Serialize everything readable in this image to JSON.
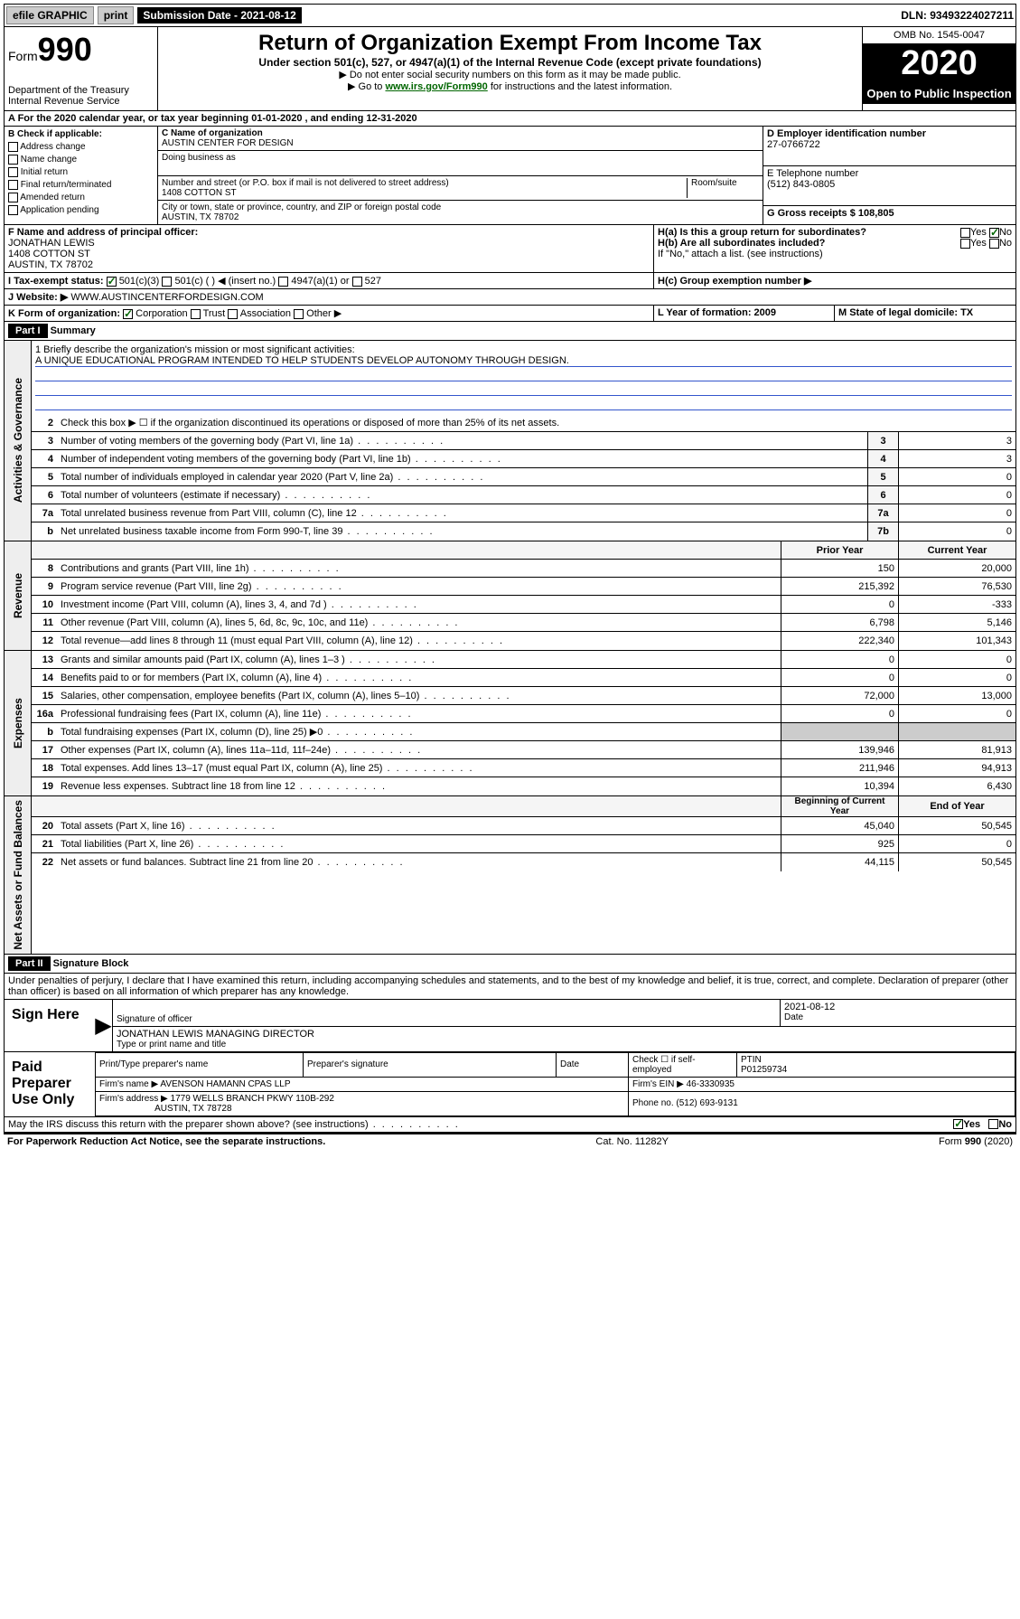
{
  "topbar": {
    "efile": "efile GRAPHIC",
    "print": "print",
    "subdate_label": "Submission Date - 2021-08-12",
    "dln": "DLN: 93493224027211"
  },
  "header": {
    "form_label": "Form",
    "form_num": "990",
    "dept": "Department of the Treasury",
    "irs": "Internal Revenue Service",
    "title": "Return of Organization Exempt From Income Tax",
    "subtitle": "Under section 501(c), 527, or 4947(a)(1) of the Internal Revenue Code (except private foundations)",
    "note1": "▶ Do not enter social security numbers on this form as it may be made public.",
    "note2_pre": "▶ Go to ",
    "note2_link": "www.irs.gov/Form990",
    "note2_post": " for instructions and the latest information.",
    "omb": "OMB No. 1545-0047",
    "year": "2020",
    "open": "Open to Public Inspection"
  },
  "tax_year_line": "A For the 2020 calendar year, or tax year beginning 01-01-2020    , and ending 12-31-2020",
  "section_b": {
    "title": "B Check if applicable:",
    "items": [
      "Address change",
      "Name change",
      "Initial return",
      "Final return/terminated",
      "Amended return",
      "Application pending"
    ]
  },
  "section_c": {
    "name_label": "C Name of organization",
    "name": "AUSTIN CENTER FOR DESIGN",
    "dba_label": "Doing business as",
    "addr_label": "Number and street (or P.O. box if mail is not delivered to street address)",
    "room_label": "Room/suite",
    "addr": "1408 COTTON ST",
    "city_label": "City or town, state or province, country, and ZIP or foreign postal code",
    "city": "AUSTIN, TX  78702"
  },
  "section_d": {
    "label": "D Employer identification number",
    "value": "27-0766722"
  },
  "section_e": {
    "label": "E Telephone number",
    "value": "(512) 843-0805"
  },
  "section_g": {
    "label": "G Gross receipts $ 108,805"
  },
  "section_f": {
    "label": "F  Name and address of principal officer:",
    "name": "JONATHAN LEWIS",
    "addr1": "1408 COTTON ST",
    "addr2": "AUSTIN, TX  78702"
  },
  "section_h": {
    "ha": "H(a)  Is this a group return for subordinates?",
    "hb": "H(b)  Are all subordinates included?",
    "hb_note": "If \"No,\" attach a list. (see instructions)",
    "hc": "H(c)  Group exemption number ▶",
    "yes": "Yes",
    "no": "No"
  },
  "section_i": {
    "label": "I      Tax-exempt status:",
    "opt1": "501(c)(3)",
    "opt2": "501(c) (   ) ◀ (insert no.)",
    "opt3": "4947(a)(1) or",
    "opt4": "527"
  },
  "section_j": {
    "label": "J      Website: ▶",
    "value": "WWW.AUSTINCENTERFORDESIGN.COM"
  },
  "section_k": {
    "label": "K Form of organization:",
    "corp": "Corporation",
    "trust": "Trust",
    "assoc": "Association",
    "other": "Other ▶"
  },
  "section_l": {
    "label": "L Year of formation: 2009"
  },
  "section_m": {
    "label": "M State of legal domicile: TX"
  },
  "part1": {
    "header": "Part I",
    "title": "Summary",
    "line1_label": "1  Briefly describe the organization's mission or most significant activities:",
    "line1_text": "A UNIQUE EDUCATIONAL PROGRAM INTENDED TO HELP STUDENTS DEVELOP AUTONOMY THROUGH DESIGN.",
    "line2": "Check this box ▶ ☐  if the organization discontinued its operations or disposed of more than 25% of its net assets.",
    "side_gov": "Activities & Governance",
    "side_rev": "Revenue",
    "side_exp": "Expenses",
    "side_net": "Net Assets or Fund Balances",
    "rows_gov": [
      {
        "num": "3",
        "label": "Number of voting members of the governing body (Part VI, line 1a)",
        "box": "3",
        "val": "3"
      },
      {
        "num": "4",
        "label": "Number of independent voting members of the governing body (Part VI, line 1b)",
        "box": "4",
        "val": "3"
      },
      {
        "num": "5",
        "label": "Total number of individuals employed in calendar year 2020 (Part V, line 2a)",
        "box": "5",
        "val": "0"
      },
      {
        "num": "6",
        "label": "Total number of volunteers (estimate if necessary)",
        "box": "6",
        "val": "0"
      },
      {
        "num": "7a",
        "label": "Total unrelated business revenue from Part VIII, column (C), line 12",
        "box": "7a",
        "val": "0"
      },
      {
        "num": "b",
        "label": "Net unrelated business taxable income from Form 990-T, line 39",
        "box": "7b",
        "val": "0"
      }
    ],
    "prior_year": "Prior Year",
    "current_year": "Current Year",
    "rows_rev": [
      {
        "num": "8",
        "label": "Contributions and grants (Part VIII, line 1h)",
        "prior": "150",
        "curr": "20,000"
      },
      {
        "num": "9",
        "label": "Program service revenue (Part VIII, line 2g)",
        "prior": "215,392",
        "curr": "76,530"
      },
      {
        "num": "10",
        "label": "Investment income (Part VIII, column (A), lines 3, 4, and 7d )",
        "prior": "0",
        "curr": "-333"
      },
      {
        "num": "11",
        "label": "Other revenue (Part VIII, column (A), lines 5, 6d, 8c, 9c, 10c, and 11e)",
        "prior": "6,798",
        "curr": "5,146"
      },
      {
        "num": "12",
        "label": "Total revenue—add lines 8 through 11 (must equal Part VIII, column (A), line 12)",
        "prior": "222,340",
        "curr": "101,343"
      }
    ],
    "rows_exp": [
      {
        "num": "13",
        "label": "Grants and similar amounts paid (Part IX, column (A), lines 1–3 )",
        "prior": "0",
        "curr": "0"
      },
      {
        "num": "14",
        "label": "Benefits paid to or for members (Part IX, column (A), line 4)",
        "prior": "0",
        "curr": "0"
      },
      {
        "num": "15",
        "label": "Salaries, other compensation, employee benefits (Part IX, column (A), lines 5–10)",
        "prior": "72,000",
        "curr": "13,000"
      },
      {
        "num": "16a",
        "label": "Professional fundraising fees (Part IX, column (A), line 11e)",
        "prior": "0",
        "curr": "0"
      },
      {
        "num": "b",
        "label": "Total fundraising expenses (Part IX, column (D), line 25) ▶0",
        "prior": "",
        "curr": ""
      },
      {
        "num": "17",
        "label": "Other expenses (Part IX, column (A), lines 11a–11d, 11f–24e)",
        "prior": "139,946",
        "curr": "81,913"
      },
      {
        "num": "18",
        "label": "Total expenses. Add lines 13–17 (must equal Part IX, column (A), line 25)",
        "prior": "211,946",
        "curr": "94,913"
      },
      {
        "num": "19",
        "label": "Revenue less expenses. Subtract line 18 from line 12",
        "prior": "10,394",
        "curr": "6,430"
      }
    ],
    "beg_year": "Beginning of Current Year",
    "end_year": "End of Year",
    "rows_net": [
      {
        "num": "20",
        "label": "Total assets (Part X, line 16)",
        "prior": "45,040",
        "curr": "50,545"
      },
      {
        "num": "21",
        "label": "Total liabilities (Part X, line 26)",
        "prior": "925",
        "curr": "0"
      },
      {
        "num": "22",
        "label": "Net assets or fund balances. Subtract line 21 from line 20",
        "prior": "44,115",
        "curr": "50,545"
      }
    ]
  },
  "part2": {
    "header": "Part II",
    "title": "Signature Block",
    "declaration": "Under penalties of perjury, I declare that I have examined this return, including accompanying schedules and statements, and to the best of my knowledge and belief, it is true, correct, and complete. Declaration of preparer (other than officer) is based on all information of which preparer has any knowledge."
  },
  "sign": {
    "label": "Sign Here",
    "sig_label": "Signature of officer",
    "date": "2021-08-12",
    "date_label": "Date",
    "name": "JONATHAN LEWIS  MANAGING DIRECTOR",
    "name_label": "Type or print name and title"
  },
  "paid": {
    "label": "Paid Preparer Use Only",
    "prep_name_label": "Print/Type preparer's name",
    "prep_sig_label": "Preparer's signature",
    "date_label": "Date",
    "check_label": "Check ☐ if self-employed",
    "ptin_label": "PTIN",
    "ptin": "P01259734",
    "firm_name_label": "Firm's name     ▶",
    "firm_name": "AVENSON HAMANN CPAS LLP",
    "firm_ein_label": "Firm's EIN ▶",
    "firm_ein": "46-3330935",
    "firm_addr_label": "Firm's address ▶",
    "firm_addr": "1779 WELLS BRANCH PKWY 110B-292",
    "firm_city": "AUSTIN, TX  78728",
    "phone_label": "Phone no.",
    "phone": "(512) 693-9131"
  },
  "discuss": {
    "label": "May the IRS discuss this return with the preparer shown above? (see instructions)",
    "yes": "Yes",
    "no": "No"
  },
  "footer": {
    "left": "For Paperwork Reduction Act Notice, see the separate instructions.",
    "mid": "Cat. No. 11282Y",
    "right": "Form 990 (2020)"
  }
}
